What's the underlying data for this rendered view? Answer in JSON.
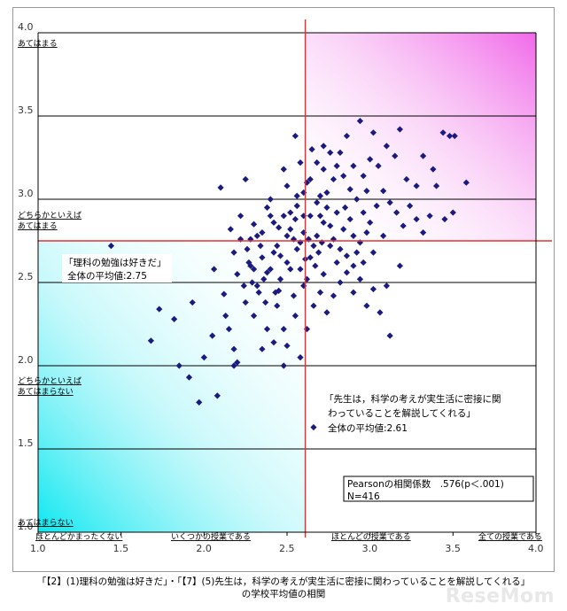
{
  "chart_data": {
    "type": "scatter",
    "xlim": [
      1.0,
      4.0
    ],
    "ylim": [
      1.0,
      4.0
    ],
    "x_ticks": [
      "1.0",
      "1.5",
      "2.0",
      "2.5",
      "3.0",
      "3.5",
      "4.0"
    ],
    "y_ticks": [
      "1.0",
      "1.5",
      "2.0",
      "2.5",
      "3.0",
      "3.5",
      "4.0"
    ],
    "x_category_labels": [
      "ほとんどかまったくない",
      "いくつかの授業である",
      "ほとんどの授業である",
      "全ての授業である"
    ],
    "y_category_labels": [
      "あてはまる",
      "どちらかといえば",
      "あてはまる",
      "どちらかといえば",
      "あてはまらない",
      "あてはまらない"
    ],
    "grid": true,
    "marker_color": "#1a1a80",
    "ref_line_color": "#e83030",
    "x_mean": 2.61,
    "y_mean": 2.75,
    "annotations": {
      "y_label_line1": "「理科の勉強は好きだ」",
      "y_label_line2": "全体の平均値:2.75",
      "x_label_line1": "「先生は，科学の考えが実生活に密接に関",
      "x_label_line2": "わっていることを解説してくれる」",
      "x_label_line3": "全体の平均値:2.61",
      "stat_line1": "Pearsonの相関係数　.576(p＜.001)",
      "stat_line2": "N=416"
    },
    "points": [
      [
        1.44,
        2.72
      ],
      [
        1.73,
        2.34
      ],
      [
        1.68,
        2.15
      ],
      [
        1.82,
        2.28
      ],
      [
        1.93,
        2.38
      ],
      [
        1.85,
        2.0
      ],
      [
        1.91,
        1.93
      ],
      [
        2.0,
        2.05
      ],
      [
        1.97,
        1.78
      ],
      [
        2.08,
        1.82
      ],
      [
        2.18,
        2.0
      ],
      [
        2.2,
        2.02
      ],
      [
        2.05,
        2.18
      ],
      [
        2.15,
        2.22
      ],
      [
        2.12,
        2.43
      ],
      [
        2.06,
        2.58
      ],
      [
        2.13,
        2.3
      ],
      [
        2.1,
        3.07
      ],
      [
        2.22,
        2.9
      ],
      [
        2.25,
        3.12
      ],
      [
        2.3,
        2.85
      ],
      [
        2.28,
        2.76
      ],
      [
        2.35,
        2.8
      ],
      [
        2.4,
        3.0
      ],
      [
        2.35,
        2.65
      ],
      [
        2.2,
        2.55
      ],
      [
        2.24,
        2.48
      ],
      [
        2.28,
        2.6
      ],
      [
        2.32,
        2.48
      ],
      [
        2.38,
        2.56
      ],
      [
        2.42,
        2.68
      ],
      [
        2.45,
        2.45
      ],
      [
        2.25,
        2.38
      ],
      [
        2.3,
        2.3
      ],
      [
        2.38,
        2.22
      ],
      [
        2.42,
        2.14
      ],
      [
        2.44,
        2.36
      ],
      [
        2.48,
        2.22
      ],
      [
        2.5,
        2.12
      ],
      [
        2.55,
        2.3
      ],
      [
        2.58,
        2.05
      ],
      [
        2.62,
        2.22
      ],
      [
        2.48,
        2.0
      ],
      [
        2.66,
        1.63
      ],
      [
        2.35,
        2.1
      ],
      [
        2.18,
        2.1
      ],
      [
        2.27,
        2.62
      ],
      [
        2.34,
        2.72
      ],
      [
        2.4,
        2.9
      ],
      [
        2.45,
        2.83
      ],
      [
        2.5,
        3.08
      ],
      [
        2.48,
        3.18
      ],
      [
        2.52,
        2.92
      ],
      [
        2.56,
        3.02
      ],
      [
        2.6,
        2.9
      ],
      [
        2.62,
        3.1
      ],
      [
        2.58,
        3.22
      ],
      [
        2.55,
        3.38
      ],
      [
        2.65,
        3.3
      ],
      [
        2.7,
        3.02
      ],
      [
        2.72,
        3.18
      ],
      [
        2.74,
        2.95
      ],
      [
        2.78,
        3.12
      ],
      [
        2.82,
        3.28
      ],
      [
        2.86,
        3.38
      ],
      [
        2.9,
        3.2
      ],
      [
        2.94,
        3.47
      ],
      [
        2.98,
        3.05
      ],
      [
        3.02,
        3.4
      ],
      [
        3.05,
        3.2
      ],
      [
        3.1,
        3.32
      ],
      [
        3.15,
        3.26
      ],
      [
        3.18,
        3.42
      ],
      [
        3.22,
        3.12
      ],
      [
        3.28,
        3.08
      ],
      [
        3.32,
        3.26
      ],
      [
        3.36,
        2.9
      ],
      [
        3.4,
        3.08
      ],
      [
        3.45,
        2.88
      ],
      [
        3.5,
        2.92
      ],
      [
        3.44,
        3.4
      ],
      [
        3.48,
        3.38
      ],
      [
        3.51,
        3.38
      ],
      [
        3.58,
        3.1
      ],
      [
        3.18,
        2.6
      ],
      [
        3.08,
        2.78
      ],
      [
        3.02,
        2.68
      ],
      [
        2.96,
        2.92
      ],
      [
        2.9,
        2.78
      ],
      [
        2.85,
        2.95
      ],
      [
        2.8,
        2.62
      ],
      [
        2.76,
        2.72
      ],
      [
        2.72,
        2.55
      ],
      [
        2.68,
        2.78
      ],
      [
        2.64,
        2.65
      ],
      [
        2.6,
        2.48
      ],
      [
        2.56,
        2.7
      ],
      [
        2.52,
        2.58
      ],
      [
        2.5,
        2.78
      ],
      [
        2.46,
        2.66
      ],
      [
        2.42,
        2.86
      ],
      [
        2.38,
        2.95
      ],
      [
        2.36,
        2.52
      ],
      [
        2.32,
        2.78
      ],
      [
        2.3,
        2.58
      ],
      [
        2.26,
        2.7
      ],
      [
        2.22,
        2.76
      ],
      [
        2.18,
        2.68
      ],
      [
        2.16,
        2.82
      ],
      [
        2.55,
        2.88
      ],
      [
        2.6,
        2.8
      ],
      [
        2.64,
        2.9
      ],
      [
        2.68,
        2.98
      ],
      [
        2.72,
        2.86
      ],
      [
        2.76,
        2.84
      ],
      [
        2.8,
        2.92
      ],
      [
        2.84,
        2.82
      ],
      [
        2.88,
        2.88
      ],
      [
        2.92,
        2.68
      ],
      [
        2.96,
        2.62
      ],
      [
        3.0,
        2.86
      ],
      [
        3.04,
        2.96
      ],
      [
        3.08,
        3.05
      ],
      [
        3.12,
        2.98
      ],
      [
        3.16,
        2.92
      ],
      [
        3.2,
        2.84
      ],
      [
        3.24,
        2.96
      ],
      [
        3.28,
        2.88
      ],
      [
        3.32,
        2.8
      ],
      [
        3.38,
        3.18
      ],
      [
        2.78,
        2.42
      ],
      [
        2.82,
        2.5
      ],
      [
        2.86,
        2.56
      ],
      [
        2.9,
        2.44
      ],
      [
        2.94,
        2.52
      ],
      [
        2.98,
        2.36
      ],
      [
        3.02,
        2.46
      ],
      [
        3.06,
        2.32
      ],
      [
        3.1,
        2.48
      ],
      [
        3.12,
        2.18
      ],
      [
        2.74,
        2.32
      ],
      [
        2.7,
        2.44
      ],
      [
        2.66,
        2.36
      ],
      [
        2.62,
        2.52
      ],
      [
        2.58,
        2.58
      ],
      [
        2.54,
        2.42
      ],
      [
        2.5,
        2.62
      ],
      [
        2.46,
        2.52
      ],
      [
        2.43,
        2.44
      ],
      [
        2.4,
        2.58
      ],
      [
        2.37,
        2.38
      ],
      [
        2.33,
        2.44
      ],
      [
        2.29,
        2.5
      ],
      [
        2.44,
        2.72
      ],
      [
        2.48,
        2.9
      ],
      [
        2.52,
        2.82
      ],
      [
        2.56,
        2.96
      ],
      [
        2.6,
        3.04
      ],
      [
        2.64,
        3.12
      ],
      [
        2.68,
        3.22
      ],
      [
        2.72,
        3.32
      ],
      [
        2.76,
        3.28
      ],
      [
        2.8,
        3.2
      ],
      [
        2.84,
        3.14
      ],
      [
        2.88,
        3.06
      ],
      [
        2.92,
        3.0
      ],
      [
        2.96,
        3.14
      ],
      [
        3.0,
        3.24
      ],
      [
        2.66,
        2.72
      ],
      [
        2.63,
        2.76
      ],
      [
        2.69,
        2.68
      ],
      [
        2.71,
        2.74
      ],
      [
        2.67,
        2.6
      ],
      [
        2.61,
        2.64
      ],
      [
        2.58,
        2.74
      ],
      [
        2.54,
        2.76
      ],
      [
        2.7,
        2.9
      ],
      [
        2.74,
        3.04
      ],
      [
        2.78,
        2.76
      ],
      [
        2.82,
        2.7
      ],
      [
        2.86,
        2.66
      ],
      [
        2.9,
        2.6
      ],
      [
        2.94,
        2.74
      ],
      [
        2.98,
        2.8
      ]
    ]
  },
  "caption": {
    "line1": "「【2】(1)理科の勉強は好きだ」・「【7】(5)先生は，科学の考えが実生活に密接に関わっていることを解説してくれる」",
    "line2": "の学校平均値の相関"
  },
  "watermark": "ReseMom"
}
